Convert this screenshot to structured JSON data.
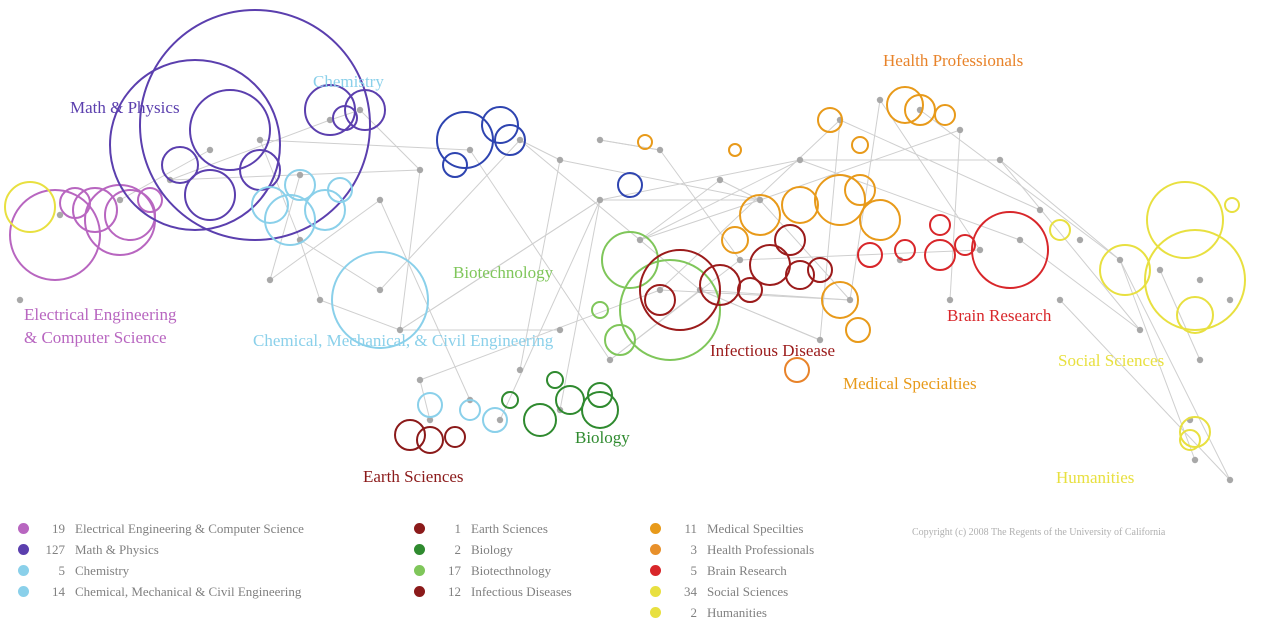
{
  "colors": {
    "eecs": "#b866c0",
    "math": "#5b3fae",
    "chem": "#8ad0ea",
    "civil": "#8ad0ea",
    "earth": "#8b1a1a",
    "bio": "#2f8a2f",
    "biotech": "#7fc65a",
    "infect": "#9b1b1b",
    "medspec": "#e89a1a",
    "health": "#e8832a",
    "brain": "#d8262a",
    "social": "#e8e040",
    "human": "#e8e040",
    "blue": "#2e44b0",
    "node": "#a8a8a8",
    "edge": "#cfcfcf"
  },
  "labels": {
    "eecs_1": "Electrical Engineering",
    "eecs_2": "& Computer Science",
    "math": "Math & Physics",
    "chem": "Chemistry",
    "civil": "Chemical, Mechanical, & Civil Engineering",
    "biotech": "Biotechnology",
    "earth": "Earth Sciences",
    "bio": "Biology",
    "infect": "Infectious Disease",
    "health": "Health Professionals",
    "medspec": "Medical Specialties",
    "brain": "Brain Research",
    "social": "Social Sciences",
    "human": "Humanities"
  },
  "legend": {
    "col1": [
      {
        "count": "19",
        "label": "Electrical Engineering & Computer Science",
        "color": "#b866c0"
      },
      {
        "count": "127",
        "label": "Math & Physics",
        "color": "#5b3fae"
      },
      {
        "count": "5",
        "label": "Chemistry",
        "color": "#8ad0ea"
      },
      {
        "count": "14",
        "label": "Chemical, Mechanical & Civil Engineering",
        "color": "#8ad0ea"
      }
    ],
    "col2": [
      {
        "count": "1",
        "label": "Earth Sciences",
        "color": "#8b1a1a"
      },
      {
        "count": "2",
        "label": "Biology",
        "color": "#2f8a2f"
      },
      {
        "count": "17",
        "label": "Biotecthnology",
        "color": "#7fc65a"
      },
      {
        "count": "12",
        "label": "Infectious Diseases",
        "color": "#8b1a1a"
      }
    ],
    "col3": [
      {
        "count": "11",
        "label": "Medical Specilties",
        "color": "#e89a1a"
      },
      {
        "count": "3",
        "label": "Health Professionals",
        "color": "#e8902a"
      },
      {
        "count": "5",
        "label": "Brain Research",
        "color": "#d8262a"
      },
      {
        "count": "34",
        "label": "Social Sciences",
        "color": "#e8e040"
      },
      {
        "count": "2",
        "label": "Humanities",
        "color": "#e8e040"
      }
    ]
  },
  "copyright": "Copyright (c) 2008 The Regents of the University of California"
}
